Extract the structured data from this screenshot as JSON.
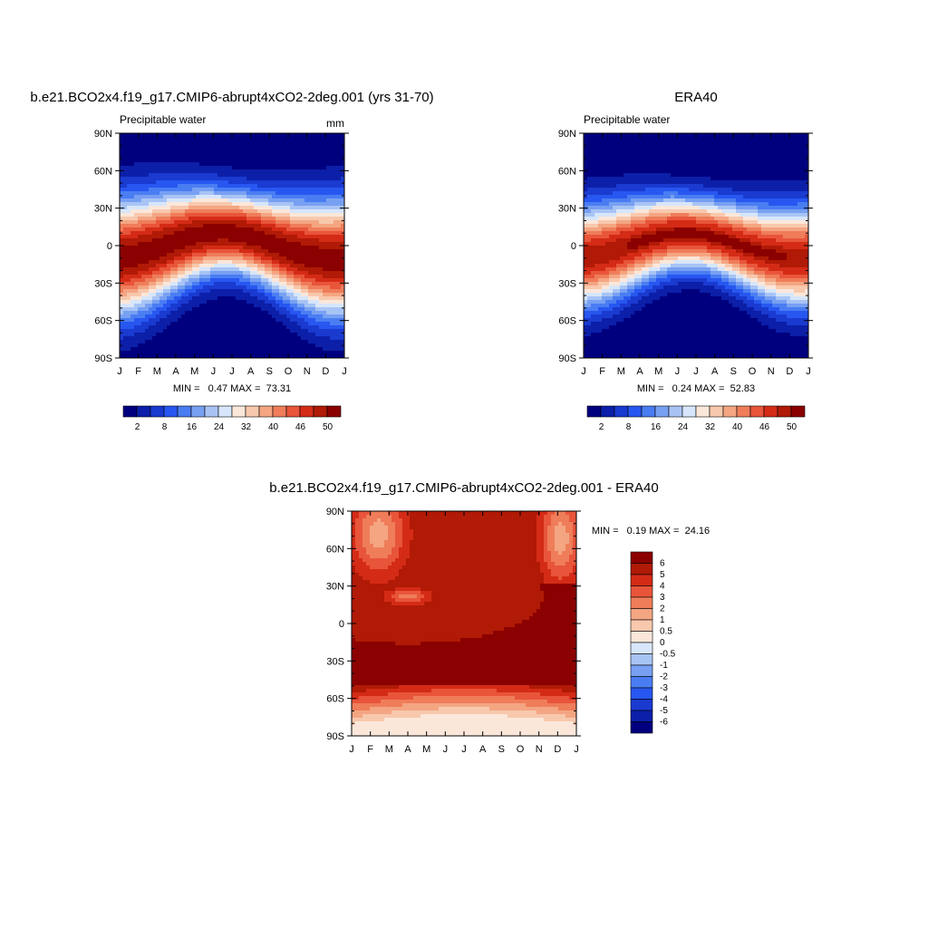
{
  "colors": {
    "precip_scale": [
      "#00007f",
      "#0c1fa8",
      "#1a3ad0",
      "#2757f0",
      "#4a7df2",
      "#78a0f2",
      "#a8c4f5",
      "#d7e6fa",
      "#fbe7da",
      "#f8c8ad",
      "#f4a582",
      "#ef7d5a",
      "#e8553a",
      "#d42b16",
      "#b01a06",
      "#8b0000"
    ],
    "diff_scale": [
      "#00007f",
      "#0c1fa8",
      "#1a3ad0",
      "#2757f0",
      "#4a7df2",
      "#78a0f2",
      "#a8c4f5",
      "#d7e6fa",
      "#fbe7da",
      "#f8c8ad",
      "#f4a582",
      "#ef7d5a",
      "#e8553a",
      "#d42b16",
      "#b01a06",
      "#8b0000"
    ]
  },
  "chart_data": [
    {
      "type": "heatmap",
      "title": "b.e21.BCO2x4.f19_g17.CMIP6-abrupt4xCO2-2deg.001 (yrs 31-70)",
      "left_label": "Precipitable water",
      "right_label": "mm",
      "x_ticks": [
        "J",
        "F",
        "M",
        "A",
        "M",
        "J",
        "J",
        "A",
        "S",
        "O",
        "N",
        "D",
        "J"
      ],
      "y_ticks": [
        "90N",
        "60N",
        "30N",
        "0",
        "30S",
        "60S",
        "90S"
      ],
      "min_text": "MIN =   0.47 MAX =  73.31",
      "colorbar_labels": [
        "2",
        "8",
        "16",
        "24",
        "32",
        "40",
        "46",
        "50"
      ],
      "min": 0.47,
      "max": 73.31
    },
    {
      "type": "heatmap",
      "title": "ERA40",
      "left_label": "Precipitable water",
      "x_ticks": [
        "J",
        "F",
        "M",
        "A",
        "M",
        "J",
        "J",
        "A",
        "S",
        "O",
        "N",
        "D",
        "J"
      ],
      "y_ticks": [
        "90N",
        "60N",
        "30N",
        "0",
        "30S",
        "60S",
        "90S"
      ],
      "min_text": "MIN =   0.24 MAX =  52.83",
      "colorbar_labels": [
        "2",
        "8",
        "16",
        "24",
        "32",
        "40",
        "46",
        "50"
      ],
      "min": 0.24,
      "max": 52.83
    },
    {
      "type": "heatmap",
      "title": "b.e21.BCO2x4.f19_g17.CMIP6-abrupt4xCO2-2deg.001 - ERA40",
      "x_ticks": [
        "J",
        "F",
        "M",
        "A",
        "M",
        "J",
        "J",
        "A",
        "S",
        "O",
        "N",
        "D",
        "J"
      ],
      "y_ticks": [
        "90N",
        "60N",
        "30N",
        "0",
        "30S",
        "60S",
        "90S"
      ],
      "min_text": "MIN =   0.19 MAX =  24.16",
      "colorbar_labels": [
        "6",
        "5",
        "4",
        "3",
        "2",
        "1",
        "0.5",
        "0",
        "-0.5",
        "-1",
        "-2",
        "-3",
        "-4",
        "-5",
        "-6"
      ],
      "min": 0.19,
      "max": 24.16
    }
  ]
}
